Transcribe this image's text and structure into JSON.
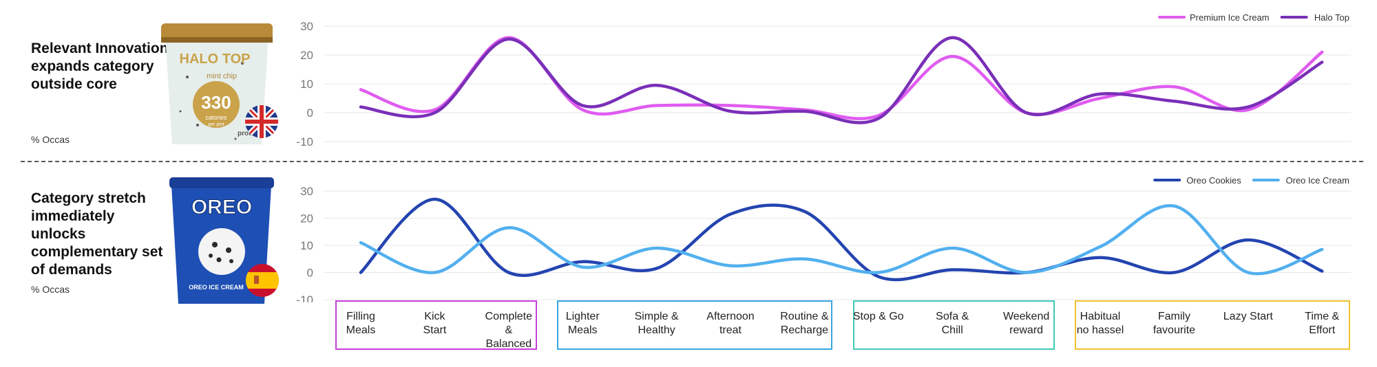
{
  "panels": [
    {
      "headline": "Relevant Innovation expands category outside core",
      "subtitle": "% Occas",
      "product": {
        "brand": "HALO TOP",
        "flavor": "mint chip",
        "calories": "330",
        "calories_unit": "calories",
        "per": "per pint",
        "badge": "protein"
      },
      "flag": "uk-flag-icon"
    },
    {
      "headline": "Category stretch immediately unlocks complementary set of demands",
      "subtitle": "% Occas",
      "product": {
        "brand": "OREO",
        "label": "OREO ICE CREAM"
      },
      "flag": "spain-flag-icon"
    }
  ],
  "categories": [
    "Filling Meals",
    "Kick Start",
    "Complete & Balanced",
    "Lighter Meals",
    "Simple & Healthy",
    "Afternoon treat",
    "Routine & Recharge",
    "Stop & Go",
    "Sofa & Chill",
    "Weekend reward",
    "Habitual no hassel",
    "Family favourite",
    "Lazy Start",
    "Time & Effort"
  ],
  "category_lines": [
    [
      "Filling",
      "Meals"
    ],
    [
      "Kick",
      "Start"
    ],
    [
      "Complete",
      "&",
      "Balanced"
    ],
    [
      "Lighter",
      "Meals"
    ],
    [
      "Simple &",
      "Healthy"
    ],
    [
      "Afternoon",
      "treat"
    ],
    [
      "Routine &",
      "Recharge"
    ],
    [
      "Stop & Go"
    ],
    [
      "Sofa &",
      "Chill"
    ],
    [
      "Weekend",
      "reward"
    ],
    [
      "Habitual",
      "no hassel"
    ],
    [
      "Family",
      "favourite"
    ],
    [
      "Lazy Start"
    ],
    [
      "Time &",
      "Effort"
    ]
  ],
  "category_groups": [
    {
      "count": 3,
      "color": "#c53fd8"
    },
    {
      "count": 4,
      "color": "#3aa5e0"
    },
    {
      "count": 3,
      "color": "#3ec9b6"
    },
    {
      "count": 4,
      "color": "#f2c230"
    }
  ],
  "chart_data": [
    {
      "type": "line",
      "categories": [
        "Filling Meals",
        "Kick Start",
        "Complete & Balanced",
        "Lighter Meals",
        "Simple & Healthy",
        "Afternoon treat",
        "Routine & Recharge",
        "Stop & Go",
        "Sofa & Chill",
        "Weekend reward",
        "Habitual no hassel",
        "Family favourite",
        "Lazy Start",
        "Time & Effort"
      ],
      "series": [
        {
          "name": "Premium Ice Cream",
          "color": "#e05cf0",
          "values": [
            8,
            1,
            26,
            1,
            2.5,
            2.5,
            1,
            -1,
            19.5,
            0,
            5,
            9,
            1,
            21
          ]
        },
        {
          "name": "Halo Top",
          "color": "#7a2fb8",
          "values": [
            2,
            0,
            25.5,
            2.5,
            9.5,
            0.5,
            0.5,
            -2,
            26,
            0,
            6.5,
            4,
            2,
            17.5
          ]
        }
      ],
      "yticks": [
        30,
        20,
        10,
        0,
        -10
      ],
      "ylim": [
        -10,
        30
      ],
      "legend": "top-right",
      "grid": true
    },
    {
      "type": "line",
      "categories": [
        "Filling Meals",
        "Kick Start",
        "Complete & Balanced",
        "Lighter Meals",
        "Simple & Healthy",
        "Afternoon treat",
        "Routine & Recharge",
        "Stop & Go",
        "Sofa & Chill",
        "Weekend reward",
        "Habitual no hassel",
        "Family favourite",
        "Lazy Start",
        "Time & Effort"
      ],
      "series": [
        {
          "name": "Oreo Cookies",
          "color": "#2444b0",
          "values": [
            0,
            27,
            0,
            4,
            1.5,
            21.5,
            22.5,
            -1.5,
            1,
            0,
            5.5,
            0,
            12,
            0.5
          ]
        },
        {
          "name": "Oreo Ice Cream",
          "color": "#52b0ef",
          "values": [
            11,
            0,
            16.5,
            2,
            9,
            2.5,
            5,
            0,
            9,
            0,
            9.5,
            24.5,
            0,
            8.5
          ]
        }
      ],
      "yticks": [
        30,
        20,
        10,
        0,
        -10
      ],
      "ylim": [
        -10,
        30
      ],
      "legend": "top-right",
      "grid": true
    }
  ]
}
